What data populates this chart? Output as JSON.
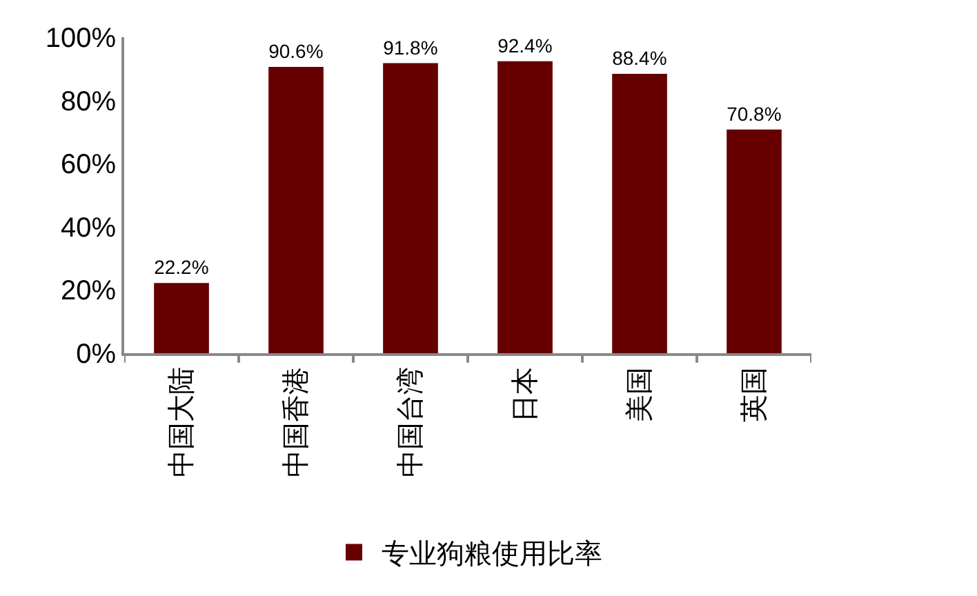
{
  "chart_data": {
    "type": "bar",
    "categories": [
      "中国大陆",
      "中国香港",
      "中国台湾",
      "日本",
      "美国",
      "英国"
    ],
    "series": [
      {
        "name": "专业狗粮使用比率",
        "color": "#660000",
        "values": [
          22.2,
          90.6,
          91.8,
          92.4,
          88.4,
          70.8
        ],
        "value_labels": [
          "22.2%",
          "90.6%",
          "91.8%",
          "92.4%",
          "88.4%",
          "70.8%"
        ]
      }
    ],
    "ylim": [
      0,
      100
    ],
    "yticks": [
      {
        "value": 0,
        "label": "0%"
      },
      {
        "value": 20,
        "label": "20%"
      },
      {
        "value": 40,
        "label": "40%"
      },
      {
        "value": 60,
        "label": "60%"
      },
      {
        "value": 80,
        "label": "80%"
      },
      {
        "value": 100,
        "label": "100%"
      }
    ],
    "grid": false,
    "legend": "bottom"
  }
}
